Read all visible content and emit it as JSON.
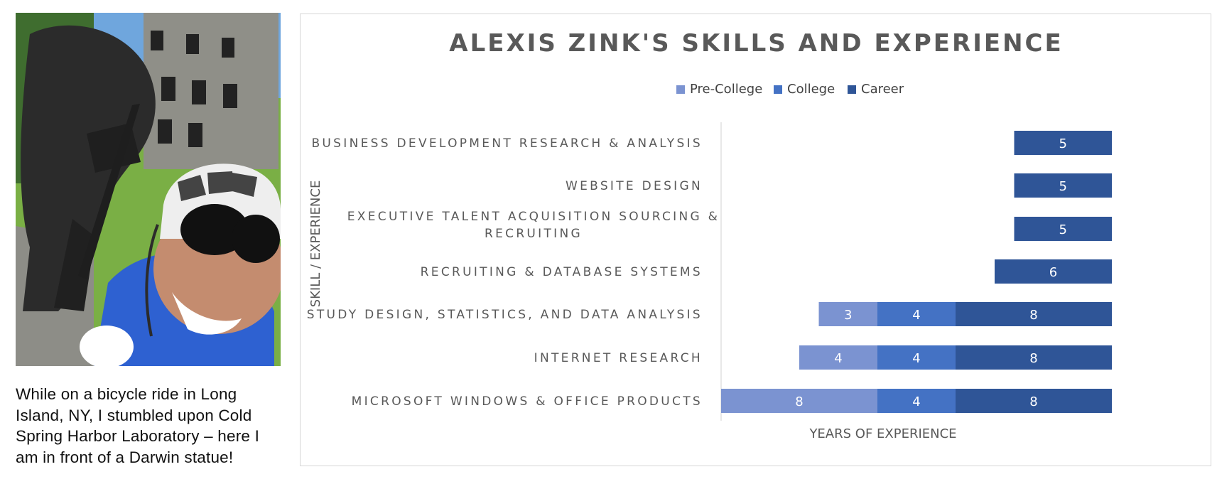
{
  "caption": "While on a bicycle ride in Long Island, NY, I stumbled upon Cold Spring Harbor Laboratory – here I am in front of a Darwin statue!",
  "colors": {
    "pre_college": "#7b93d1",
    "college": "#4472c4",
    "career": "#2f5597"
  },
  "chart_data": {
    "type": "bar",
    "orientation": "horizontal",
    "stacked": true,
    "title": "ALEXIS ZINK'S SKILLS AND EXPERIENCE",
    "xlabel": "YEARS OF EXPERIENCE",
    "ylabel": "SKILL / EXPERIENCE",
    "legend_position": "top",
    "grid": false,
    "xlim": [
      0,
      20
    ],
    "categories": [
      "BUSINESS DEVELOPMENT RESEARCH & ANALYSIS",
      "WEBSITE DESIGN",
      "EXECUTIVE TALENT ACQUISITION SOURCING & RECRUITING",
      "RECRUITING & DATABASE SYSTEMS",
      "STUDY DESIGN, STATISTICS, AND DATA ANALYSIS",
      "INTERNET RESEARCH",
      "MICROSOFT WINDOWS & OFFICE PRODUCTS"
    ],
    "series": [
      {
        "name": "Pre-College",
        "values": [
          0,
          0,
          0,
          0,
          3,
          4,
          8
        ]
      },
      {
        "name": "College",
        "values": [
          0,
          0,
          0,
          0,
          4,
          4,
          4
        ]
      },
      {
        "name": "Career",
        "values": [
          5,
          5,
          5,
          6,
          8,
          8,
          8
        ]
      }
    ]
  }
}
